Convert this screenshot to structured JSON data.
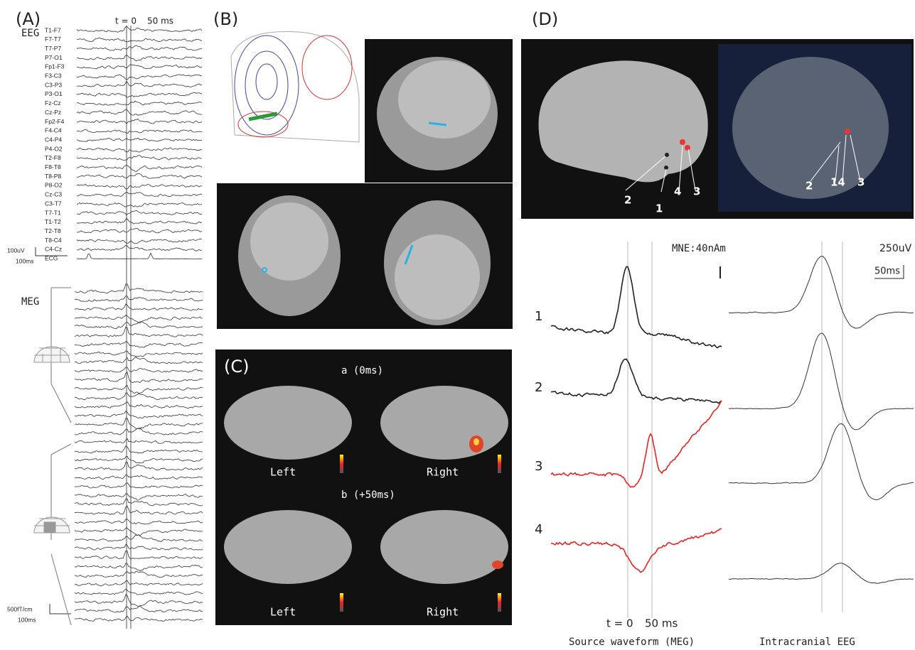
{
  "panel_a": {
    "label": "(A)",
    "t0": "t = 0",
    "t50": "50 ms",
    "eeg_label": "EEG",
    "channels": [
      "T1-F7",
      "F7-T7",
      "T7-P7",
      "P7-O1",
      "Fp1-F3",
      "F3-C3",
      "C3-P3",
      "P3-O1",
      "Fz-Cz",
      "Cz-Pz",
      "Fp2-F4",
      "F4-C4",
      "C4-P4",
      "P4-O2",
      "T2-F8",
      "F8-T8",
      "T8-P8",
      "P8-O2",
      "Cz-C3",
      "C3-T7",
      "T7-T1",
      "T1-T2",
      "T2-T8",
      "T8-C4",
      "C4-Cz",
      "ECG"
    ],
    "eeg_scale_amp": "100uV",
    "eeg_scale_time": "100ms",
    "meg_label": "MEG",
    "meg_scale_amp": "500fT/cm",
    "meg_scale_time": "100ms"
  },
  "panel_b": {
    "label": "(B)"
  },
  "panel_c": {
    "label": "(C)",
    "row_a": "a (0ms)",
    "row_b": "b (+50ms)",
    "sides": [
      "Left",
      "Right",
      "Left",
      "Right"
    ]
  },
  "panel_d": {
    "label": "(D)",
    "brain_markers": [
      "2",
      "1",
      "4",
      "3"
    ],
    "ieeg_markers": [
      "2",
      "14",
      "3"
    ],
    "mne_scale": "MNE:40nAm",
    "ieeg_scale": "250uV",
    "time_scale": "50ms",
    "trace_labels": [
      "1",
      "2",
      "3",
      "4"
    ],
    "t0": "t = 0",
    "t50": "50 ms",
    "meg_caption": "Source waveform (MEG)",
    "ieeg_caption": "Intracranial EEG"
  }
}
